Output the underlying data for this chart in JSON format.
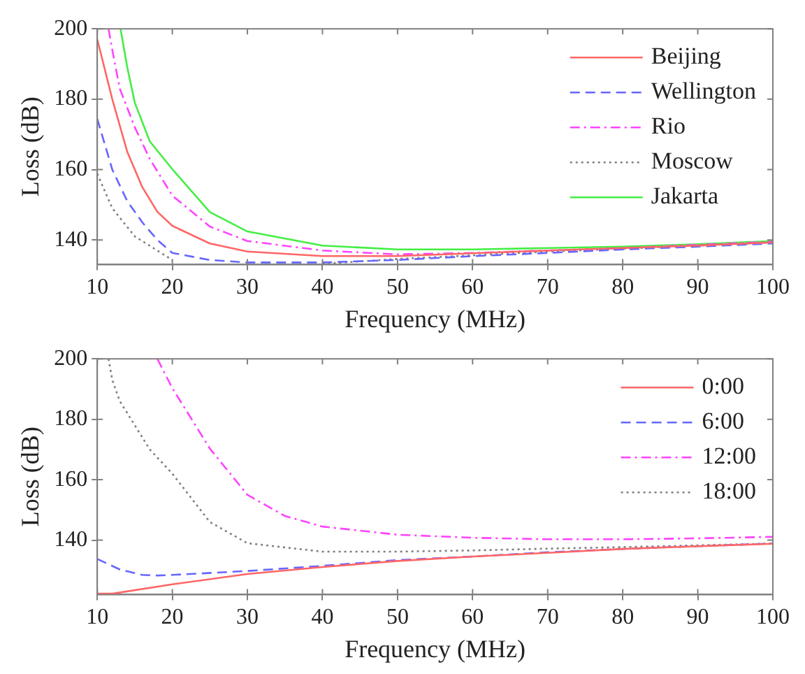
{
  "chart_data": [
    {
      "type": "line",
      "xlabel": "Frequency (MHz)",
      "ylabel": "Loss (dB)",
      "xlim": [
        10,
        100
      ],
      "ylim": [
        133,
        200
      ],
      "xticks": [
        10,
        20,
        30,
        40,
        50,
        60,
        70,
        80,
        90,
        100
      ],
      "yticks": [
        140,
        160,
        180,
        200
      ],
      "grid": false,
      "legend": "top right",
      "marker": "none",
      "series": [
        {
          "name": "Beijing",
          "color": "#ff6666",
          "line_style": "solid",
          "x": [
            10,
            12,
            14,
            16,
            18,
            20,
            25,
            30,
            40,
            50,
            60,
            70,
            80,
            90,
            100
          ],
          "values": [
            197,
            180,
            165,
            155,
            148,
            144,
            139,
            136.7,
            135.4,
            135.4,
            136.2,
            137,
            137.7,
            138.4,
            139.3
          ]
        },
        {
          "name": "Wellington",
          "color": "#6666ff",
          "line_style": "dashed",
          "x": [
            10,
            12,
            14,
            16,
            18,
            20,
            25,
            30,
            40,
            50,
            60,
            70,
            80,
            90,
            100
          ],
          "values": [
            174.4,
            160,
            151,
            145,
            140,
            136.3,
            134.3,
            133.6,
            133.6,
            134.3,
            135.4,
            136.3,
            137.3,
            138.1,
            139
          ]
        },
        {
          "name": "Rio",
          "color": "#ff44ff",
          "line_style": "dashdot",
          "x": [
            11.5,
            12,
            13,
            15,
            17,
            20,
            25,
            30,
            40,
            50,
            60,
            70,
            80,
            90,
            100
          ],
          "values": [
            200,
            194,
            183,
            172,
            163,
            152.6,
            143.8,
            139.7,
            137,
            135.9,
            136.3,
            137,
            137.7,
            138.6,
            139.5
          ]
        },
        {
          "name": "Moscow",
          "color": "#808080",
          "line_style": "dotted",
          "x": [
            10,
            12,
            15,
            20,
            25,
            30,
            40,
            50,
            60,
            70,
            80,
            90,
            100
          ],
          "values": [
            158.8,
            149,
            141,
            134.3,
            null,
            null,
            133.2,
            134.6,
            135.6,
            136.7,
            137.5,
            138.4,
            139.3
          ]
        },
        {
          "name": "Jakarta",
          "color": "#44ee44",
          "line_style": "solid",
          "x": [
            13.1,
            14,
            15,
            17,
            20,
            25,
            30,
            40,
            50,
            60,
            70,
            80,
            90,
            100
          ],
          "values": [
            200,
            189,
            179,
            168,
            160.1,
            147.9,
            142.4,
            138.4,
            137.3,
            137.3,
            137.7,
            138.1,
            138.8,
            139.7
          ]
        }
      ]
    },
    {
      "type": "line",
      "xlabel": "Frequency (MHz)",
      "ylabel": "Loss (dB)",
      "xlim": [
        10,
        100
      ],
      "ylim": [
        122,
        200
      ],
      "xticks": [
        10,
        20,
        30,
        40,
        50,
        60,
        70,
        80,
        90,
        100
      ],
      "yticks": [
        140,
        160,
        180,
        200
      ],
      "grid": false,
      "legend": "top right",
      "marker": "none",
      "series": [
        {
          "name": "0:00",
          "color": "#ff6666",
          "line_style": "solid",
          "x": [
            10,
            12,
            20,
            30,
            40,
            50,
            60,
            70,
            80,
            90,
            100
          ],
          "values": [
            122.3,
            122.3,
            125.4,
            128.8,
            131.1,
            133.1,
            134.6,
            135.8,
            137.1,
            138,
            138.8
          ]
        },
        {
          "name": "6:00",
          "color": "#6666ff",
          "line_style": "dashed",
          "x": [
            10,
            13,
            16,
            18,
            20,
            30,
            40,
            50,
            60,
            70,
            80,
            90,
            100
          ],
          "values": [
            133.8,
            130.3,
            128.5,
            128.3,
            128.5,
            129.8,
            131.5,
            133.4,
            134.6,
            136,
            137.1,
            138,
            138.9
          ]
        },
        {
          "name": "12:00",
          "color": "#ff44ff",
          "line_style": "dashdot",
          "x": [
            18,
            20,
            25,
            30,
            35,
            40,
            50,
            60,
            70,
            80,
            90,
            100
          ],
          "values": [
            200,
            190.3,
            170.3,
            155,
            148,
            144.5,
            141.8,
            140.8,
            140.3,
            140.3,
            140.6,
            141.1
          ]
        },
        {
          "name": "18:00",
          "color": "#808080",
          "line_style": "dotted",
          "x": [
            11.5,
            12,
            13,
            15,
            17,
            20,
            25,
            30,
            40,
            50,
            60,
            70,
            80,
            90,
            100
          ],
          "values": [
            200,
            193,
            186,
            178,
            170,
            162,
            146,
            139,
            136.2,
            136.2,
            136.6,
            137.2,
            137.7,
            138.3,
            138.9
          ]
        }
      ]
    }
  ]
}
